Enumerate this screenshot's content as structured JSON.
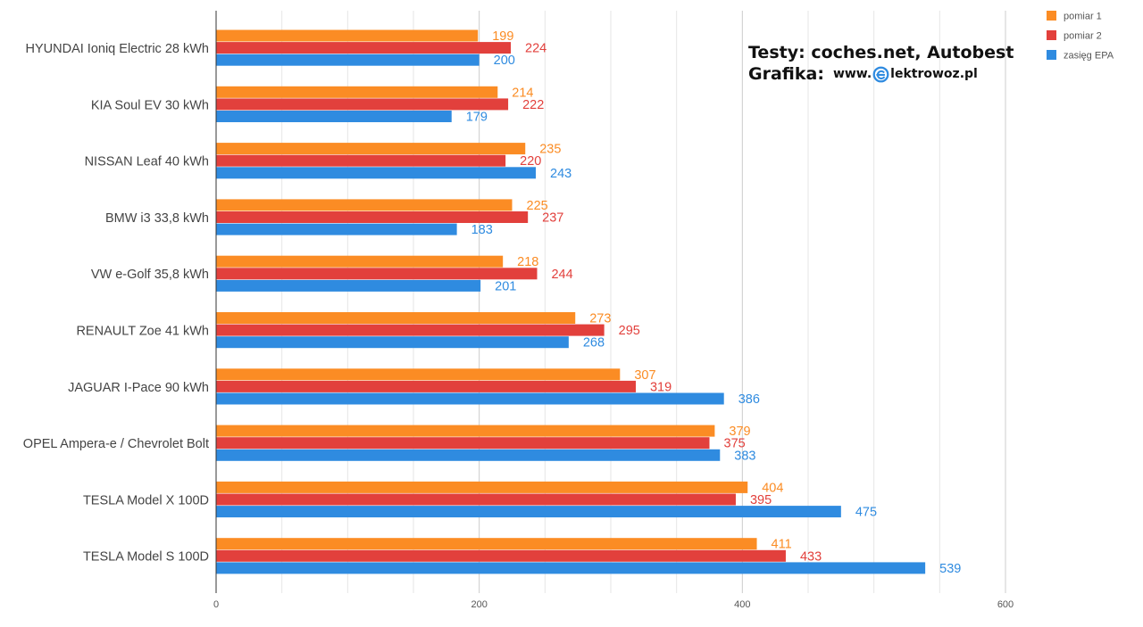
{
  "chart_data": {
    "type": "bar",
    "orientation": "horizontal",
    "categories": [
      "HYUNDAI Ioniq Electric 28 kWh",
      "KIA Soul EV 30 kWh",
      "NISSAN Leaf 40 kWh",
      "BMW i3 33,8 kWh",
      "VW e-Golf 35,8 kWh",
      "RENAULT Zoe 41 kWh",
      "JAGUAR I-Pace 90 kWh",
      "OPEL Ampera-e / Chevrolet Bolt",
      "TESLA Model X 100D",
      "TESLA Model S 100D"
    ],
    "series": [
      {
        "name": "pomiar 1",
        "color": "#fb8c24",
        "values": [
          199,
          214,
          235,
          225,
          218,
          273,
          307,
          379,
          404,
          411
        ]
      },
      {
        "name": "pomiar 2",
        "color": "#e2403c",
        "values": [
          224,
          222,
          220,
          237,
          244,
          295,
          319,
          375,
          395,
          433
        ]
      },
      {
        "name": "zasięg EPA",
        "color": "#2f8be0",
        "values": [
          200,
          179,
          243,
          183,
          201,
          268,
          386,
          383,
          475,
          539
        ]
      }
    ],
    "xlim": [
      0,
      600
    ],
    "xticks": [
      0,
      200,
      400,
      600
    ],
    "grid": true,
    "legend_position": "top-right",
    "data_labels": true
  },
  "credits": {
    "line1": "Testy: coches.net, Autobest",
    "line2_label": "Grafika:",
    "url_prefix": "www.",
    "url_suffix": "lektrowoz.pl",
    "logo_icon": "e-plug-logo-icon"
  }
}
